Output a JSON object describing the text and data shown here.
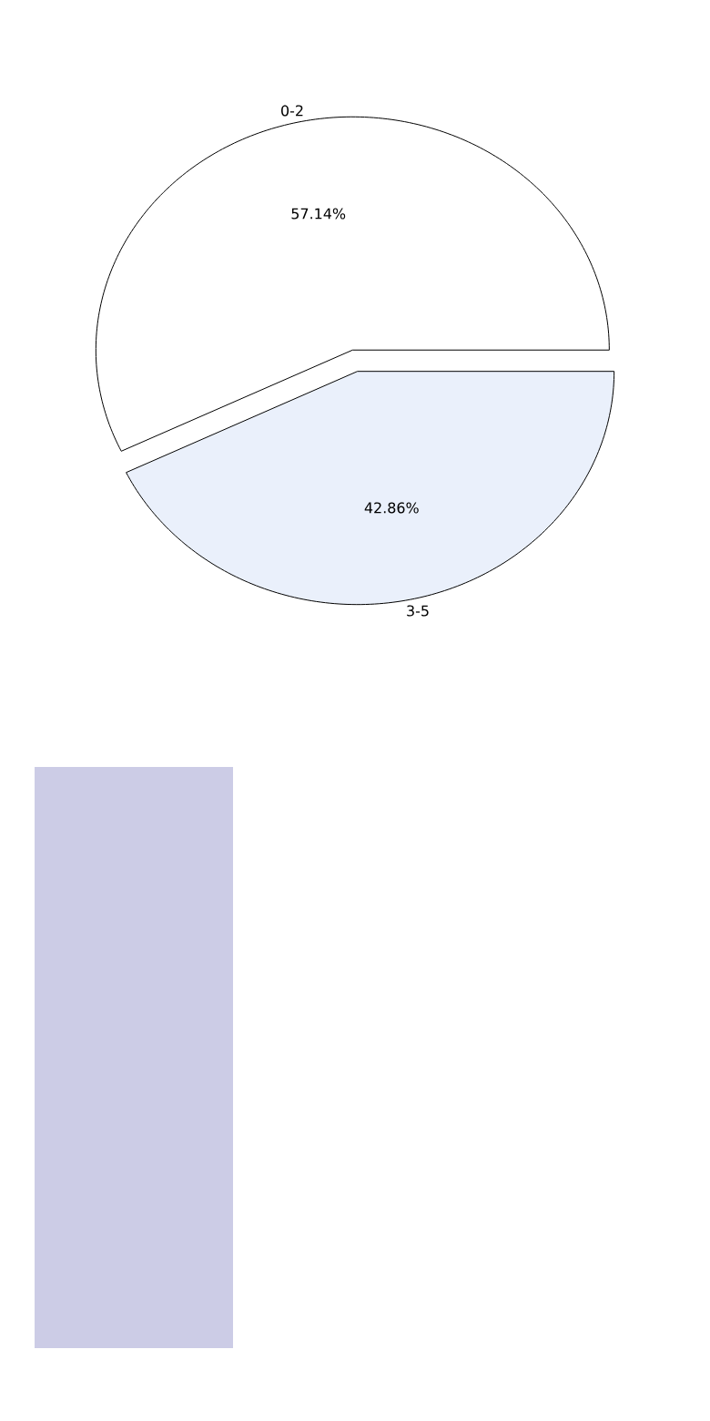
{
  "chart_data": [
    {
      "type": "pie",
      "categories": [
        "0-2",
        "3-5"
      ],
      "values": [
        57.14,
        42.86
      ],
      "colors": [
        "#ffffff",
        "#eaf0fb"
      ],
      "value_labels": [
        "57.14%",
        "42.86%"
      ]
    }
  ]
}
